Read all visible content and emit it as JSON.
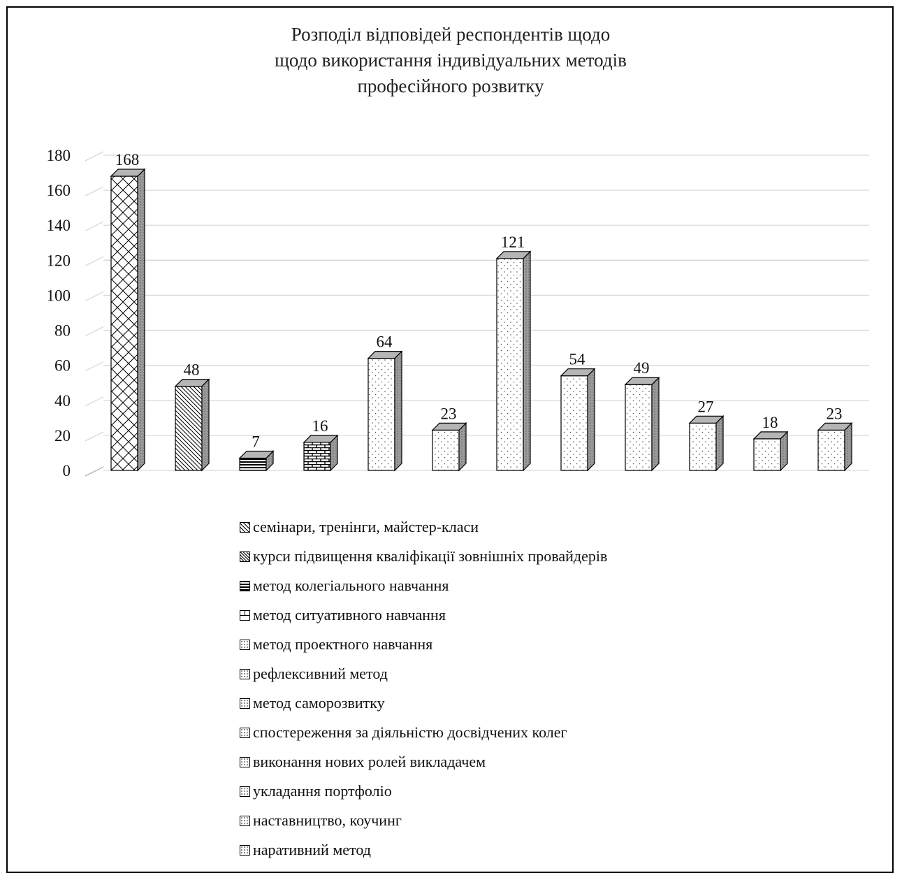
{
  "chart_data": {
    "type": "bar",
    "title": [
      "Розподіл відповідей респондентів щодо",
      "щодо використання індивідуальних методів",
      "професійного розвитку"
    ],
    "categories": [
      "семінари, тренінги, майстер-класи",
      "курси підвищення кваліфікації зовнішніх провайдерів",
      "метод колегіального навчання",
      "метод ситуативного навчання",
      "метод проектного навчання",
      "рефлексивний метод",
      "метод саморозвитку",
      "спостереження за діяльністю досвідчених колег",
      "виконання нових ролей викладачем",
      "укладання портфоліо",
      "наставництво, коучинг",
      "наративний метод"
    ],
    "values": [
      168,
      48,
      7,
      16,
      64,
      23,
      121,
      54,
      49,
      27,
      18,
      23
    ],
    "patterns": [
      "crosshatch",
      "diagonal",
      "horizontal",
      "brick",
      "dots",
      "dots",
      "dots",
      "dots",
      "dots",
      "dots",
      "dots",
      "dots"
    ],
    "ylim": [
      0,
      180
    ],
    "yticks": [
      "0",
      "20",
      "40",
      "60",
      "80",
      "100",
      "120",
      "140",
      "160",
      "180"
    ],
    "grid": true,
    "legend_position": "bottom",
    "bar_style": "3d"
  },
  "colors": {
    "gridline": "#d9d9d9",
    "bar_outline": "#000000",
    "bar_side": "#9a9a9a",
    "bar_top": "#b5b5b5"
  }
}
